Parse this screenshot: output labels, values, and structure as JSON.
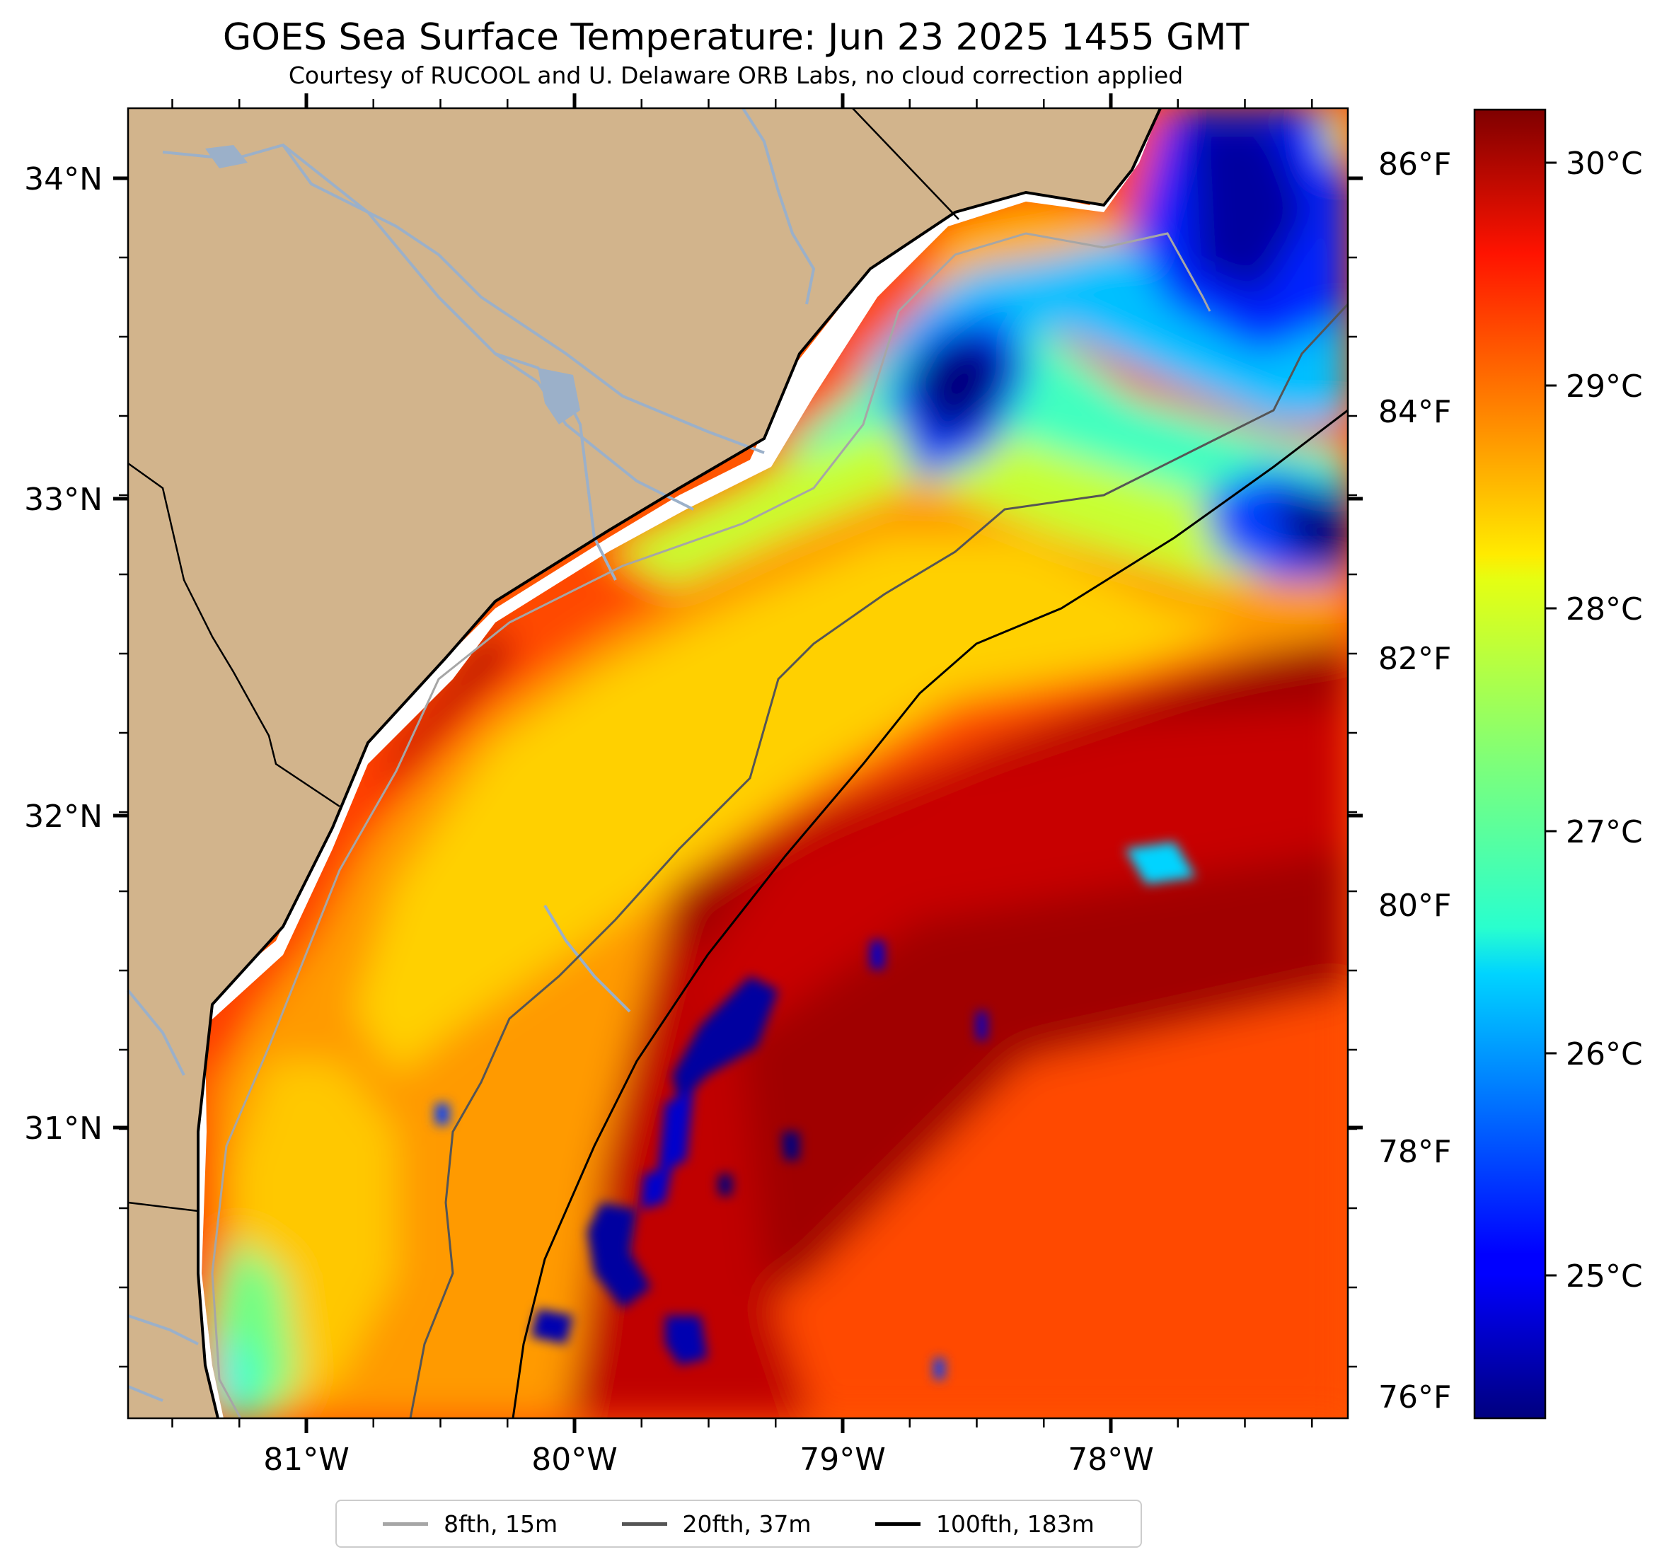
{
  "title": "GOES Sea Surface Temperature: Jun 23 2025 1455 GMT",
  "subtitle": "Courtesy of RUCOOL and U. Delaware ORB Labs, no cloud correction applied",
  "map": {
    "lat_labels": [
      "34°N",
      "33°N",
      "32°N",
      "31°N"
    ],
    "lat_values": [
      34,
      33,
      32,
      31
    ],
    "lon_labels": [
      "81°W",
      "80°W",
      "79°W",
      "78°W"
    ],
    "lon_values": [
      -81,
      -80,
      -79,
      -78
    ],
    "extent": {
      "lon_min": -81.67,
      "lon_max": -77.12,
      "lat_min": 30.09,
      "lat_max": 34.22
    },
    "land_color": "#d2b48c",
    "coast_color": "#000000",
    "river_color": "#9bb0c9"
  },
  "fahrenheit_labels": [
    "86°F",
    "84°F",
    "82°F",
    "80°F",
    "78°F",
    "76°F"
  ],
  "fahrenheit_values": [
    86,
    84,
    82,
    80,
    78,
    76
  ],
  "colorbar": {
    "colormap": "jet",
    "min_c": 24.5,
    "max_c": 30.4,
    "labels": [
      "30°C",
      "29°C",
      "28°C",
      "27°C",
      "26°C",
      "25°C"
    ],
    "values": [
      30,
      29,
      28,
      27,
      26,
      25
    ]
  },
  "legend": [
    {
      "label": "8fth, 15m",
      "color": "#a6a6a6"
    },
    {
      "label": "20fth, 37m",
      "color": "#555555"
    },
    {
      "label": "100fth, 183m",
      "color": "#000000"
    }
  ]
}
